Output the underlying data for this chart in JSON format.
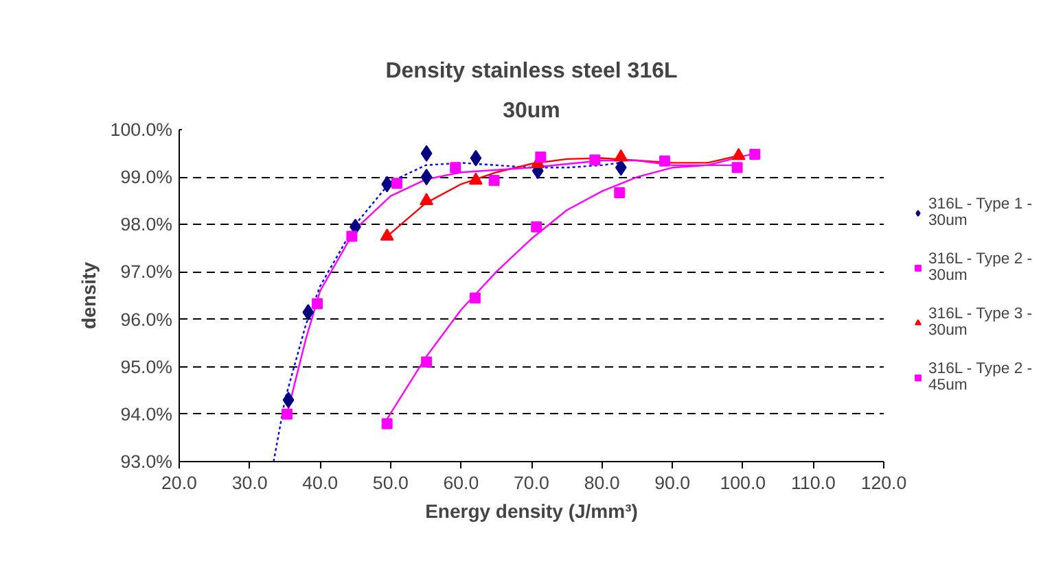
{
  "chart_data": {
    "type": "scatter",
    "title": "Density stainless steel 316L",
    "subtitle": "30um",
    "xlabel": "Energy density (J/mm³)",
    "ylabel": "density",
    "xlim": [
      20,
      120
    ],
    "ylim": [
      93,
      100
    ],
    "xticks": [
      {
        "value": 20,
        "label": "20.0"
      },
      {
        "value": 30,
        "label": "30.0"
      },
      {
        "value": 40,
        "label": "40.0"
      },
      {
        "value": 50,
        "label": "50.0"
      },
      {
        "value": 60,
        "label": "60.0"
      },
      {
        "value": 70,
        "label": "70.0"
      },
      {
        "value": 80,
        "label": "80.0"
      },
      {
        "value": 90,
        "label": "90.0"
      },
      {
        "value": 100,
        "label": "100.0"
      },
      {
        "value": 110,
        "label": "110.0"
      },
      {
        "value": 120,
        "label": "120.0"
      }
    ],
    "yticks": [
      {
        "value": 93,
        "label": "93.0%"
      },
      {
        "value": 94,
        "label": "94.0%"
      },
      {
        "value": 95,
        "label": "95.0%"
      },
      {
        "value": 96,
        "label": "96.0%"
      },
      {
        "value": 97,
        "label": "97.0%"
      },
      {
        "value": 98,
        "label": "98.0%"
      },
      {
        "value": 99,
        "label": "99.0%"
      },
      {
        "value": 100,
        "label": "100.0%"
      }
    ],
    "grid": "y",
    "legend": "right",
    "series": [
      {
        "name": "316L - Type 1 - 30um",
        "color": "#000080",
        "marker": "diamond",
        "x": [
          35.5,
          38.3,
          45.0,
          49.5,
          55.1,
          55.1,
          62.1,
          70.9,
          82.7
        ],
        "values": [
          94.3,
          96.15,
          97.95,
          98.85,
          99.0,
          99.5,
          99.4,
          99.13,
          99.2
        ]
      },
      {
        "name": "316L - Type 2 - 30um",
        "color": "#ff00ff",
        "marker": "square",
        "x": [
          49.5,
          55.1,
          62.0,
          70.7,
          82.5,
          99.2
        ],
        "values": [
          93.8,
          95.1,
          96.45,
          97.95,
          98.67,
          99.2
        ]
      },
      {
        "name": "316L - Type 3 - 30um",
        "color": "#ff0000",
        "marker": "triangle",
        "x": [
          49.5,
          55.1,
          62.1,
          70.9,
          82.7,
          99.4
        ],
        "values": [
          97.75,
          98.5,
          98.93,
          99.28,
          99.42,
          99.45
        ]
      },
      {
        "name": "316L - Type 2 - 45um",
        "color": "#ff00ff",
        "marker": "square",
        "x": [
          35.3,
          39.6,
          44.5,
          50.9,
          59.2,
          64.7,
          71.3,
          79.0,
          88.9,
          101.7
        ],
        "values": [
          94.0,
          96.33,
          97.75,
          98.87,
          99.2,
          98.93,
          99.42,
          99.36,
          99.34,
          99.48
        ]
      },
      {
        "type": "line",
        "color": "#0000ff",
        "line_style": "dotted",
        "x": [
          33.4,
          35,
          38,
          40,
          45,
          50,
          55,
          60,
          65,
          70,
          75,
          80,
          82.5
        ],
        "values": [
          93.0,
          94.3,
          95.9,
          96.7,
          98.0,
          98.9,
          99.25,
          99.3,
          99.25,
          99.2,
          99.2,
          99.25,
          99.3
        ]
      },
      {
        "type": "line",
        "color": "#ff00ff",
        "line_style": "solid",
        "x": [
          49.5,
          55,
          60,
          65,
          70,
          75,
          80,
          85,
          90,
          95,
          99.2
        ],
        "values": [
          93.9,
          95.2,
          96.2,
          97.0,
          97.7,
          98.3,
          98.7,
          99.0,
          99.2,
          99.25,
          99.25
        ]
      },
      {
        "type": "line",
        "color": "#ff0000",
        "line_style": "solid",
        "x": [
          49.5,
          55,
          60,
          65,
          70,
          75,
          80,
          85,
          90,
          95,
          99.4
        ],
        "values": [
          97.75,
          98.45,
          98.85,
          99.1,
          99.28,
          99.38,
          99.4,
          99.35,
          99.3,
          99.3,
          99.45
        ]
      },
      {
        "type": "line",
        "color": "#ff00ff",
        "line_style": "solid",
        "x": [
          35.3,
          38,
          40,
          45,
          50,
          55,
          60,
          70,
          80,
          85,
          90,
          95,
          101.7
        ],
        "values": [
          94.0,
          95.6,
          96.6,
          97.9,
          98.6,
          98.95,
          99.1,
          99.2,
          99.35,
          99.35,
          99.25,
          99.25,
          99.5
        ]
      }
    ]
  }
}
